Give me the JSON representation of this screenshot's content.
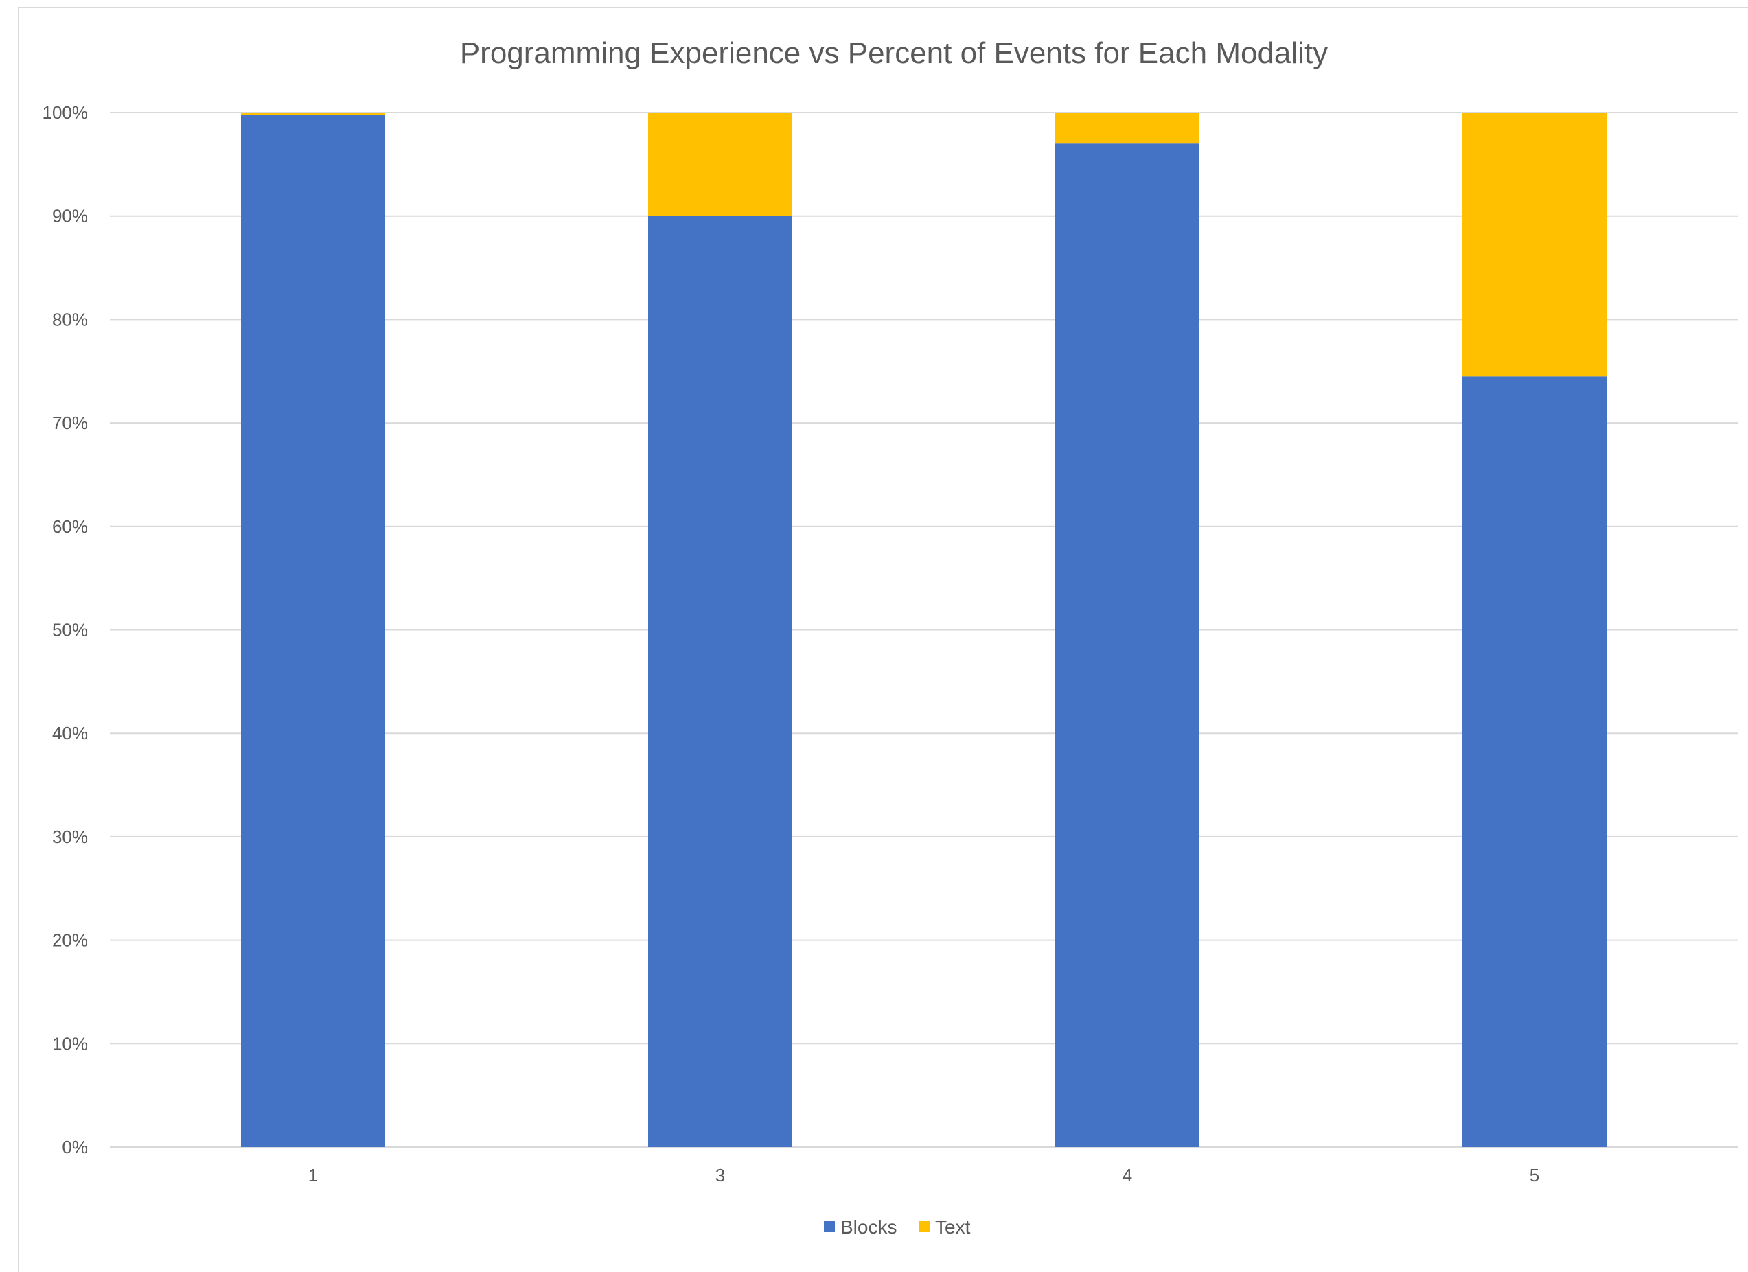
{
  "chart_data": {
    "type": "bar",
    "stacked": true,
    "title": "Programming Experience vs Percent of Events for Each Modality",
    "xlabel": "",
    "ylabel": "",
    "categories": [
      "1",
      "3",
      "4",
      "5"
    ],
    "series": [
      {
        "name": "Blocks",
        "color": "#4472C4",
        "values": [
          99.8,
          90,
          97,
          74.5
        ]
      },
      {
        "name": "Text",
        "color": "#FFC000",
        "values": [
          0.2,
          10,
          3,
          25.5
        ]
      }
    ],
    "ylim": [
      0,
      100
    ],
    "yticks": [
      "0%",
      "10%",
      "20%",
      "30%",
      "40%",
      "50%",
      "60%",
      "70%",
      "80%",
      "90%",
      "100%"
    ],
    "grid": true,
    "legend": "bottom"
  }
}
